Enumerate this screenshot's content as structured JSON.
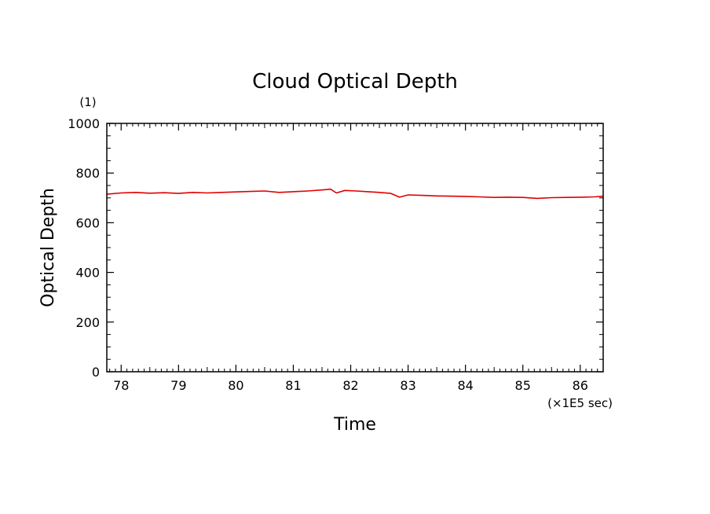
{
  "chart_data": {
    "type": "line",
    "title": "Cloud Optical Depth",
    "xlabel": "Time",
    "ylabel": "Optical Depth",
    "x_unit_label": "(×1E5 sec)",
    "y_unit_label": "(1)",
    "xlim": [
      77.75,
      86.4
    ],
    "ylim": [
      0,
      1000
    ],
    "x_ticks": [
      "78",
      "79",
      "80",
      "81",
      "82",
      "83",
      "84",
      "85",
      "86"
    ],
    "y_ticks": [
      "0",
      "200",
      "400",
      "600",
      "800",
      "1000"
    ],
    "grid": false,
    "series": [
      {
        "color": "#e00000",
        "x": [
          77.75,
          78.0,
          78.25,
          78.5,
          78.75,
          79.0,
          79.25,
          79.5,
          79.75,
          80.0,
          80.25,
          80.5,
          80.75,
          81.0,
          81.25,
          81.5,
          81.65,
          81.75,
          81.9,
          82.1,
          82.3,
          82.5,
          82.7,
          82.85,
          83.0,
          83.25,
          83.5,
          83.75,
          84.0,
          84.25,
          84.5,
          84.75,
          85.0,
          85.25,
          85.5,
          85.75,
          86.0,
          86.25,
          86.4
        ],
        "y": [
          715,
          720,
          722,
          719,
          721,
          718,
          722,
          720,
          722,
          724,
          726,
          728,
          722,
          725,
          728,
          732,
          735,
          720,
          730,
          728,
          725,
          722,
          718,
          703,
          712,
          710,
          708,
          707,
          706,
          704,
          702,
          703,
          702,
          698,
          701,
          702,
          703,
          704,
          707
        ]
      }
    ]
  }
}
